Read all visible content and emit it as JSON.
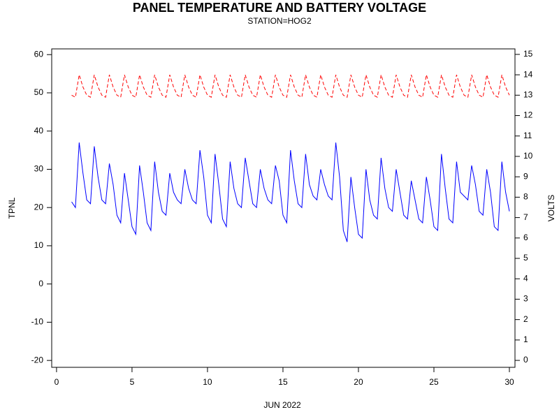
{
  "chart_data": {
    "type": "line",
    "title": "PANEL TEMPERATURE AND BATTERY VOLTAGE",
    "subtitle": "STATION=HOG2",
    "xlabel": "JUN 2022",
    "ylabel": "TPNL",
    "y2label": "VOLTS",
    "x": [
      1,
      1.25,
      1.5,
      1.75,
      2,
      2.25,
      2.5,
      2.75,
      3,
      3.25,
      3.5,
      3.75,
      4,
      4.25,
      4.5,
      4.75,
      5,
      5.25,
      5.5,
      5.75,
      6,
      6.25,
      6.5,
      6.75,
      7,
      7.25,
      7.5,
      7.75,
      8,
      8.25,
      8.5,
      8.75,
      9,
      9.25,
      9.5,
      9.75,
      10,
      10.25,
      10.5,
      10.75,
      11,
      11.25,
      11.5,
      11.75,
      12,
      12.25,
      12.5,
      12.75,
      13,
      13.25,
      13.5,
      13.75,
      14,
      14.25,
      14.5,
      14.75,
      15,
      15.25,
      15.5,
      15.75,
      16,
      16.25,
      16.5,
      16.75,
      17,
      17.25,
      17.5,
      17.75,
      18,
      18.25,
      18.5,
      18.75,
      19,
      19.25,
      19.5,
      19.75,
      20,
      20.25,
      20.5,
      20.75,
      21,
      21.25,
      21.5,
      21.75,
      22,
      22.25,
      22.5,
      22.75,
      23,
      23.25,
      23.5,
      23.75,
      24,
      24.25,
      24.5,
      24.75,
      25,
      25.25,
      25.5,
      25.75,
      26,
      26.25,
      26.5,
      26.75,
      27,
      27.25,
      27.5,
      27.75,
      28,
      28.25,
      28.5,
      28.75,
      29,
      29.25,
      29.5,
      29.75,
      30
    ],
    "series": [
      {
        "color": "#0000ff",
        "dash": false,
        "values": [
          21.5,
          20,
          37,
          29,
          22,
          21,
          36,
          28,
          22,
          21,
          31.5,
          26,
          18,
          16,
          29,
          22,
          15,
          13,
          31,
          24,
          16,
          14,
          32,
          24,
          19,
          18,
          29,
          24,
          22,
          21,
          30,
          25,
          22,
          21,
          35,
          28,
          18,
          16,
          34,
          26,
          17,
          15,
          32,
          25,
          21,
          20,
          33,
          27,
          21,
          20,
          30,
          25,
          22,
          21,
          31,
          27,
          18,
          16,
          35,
          27,
          21,
          20,
          34,
          26,
          23,
          22,
          30,
          26,
          23,
          22,
          37,
          28,
          14,
          11,
          28,
          20,
          13,
          12,
          30,
          22,
          18,
          17,
          33,
          25,
          20,
          19,
          30,
          24,
          18,
          17,
          27,
          22,
          17,
          16,
          28,
          22,
          15,
          14,
          34,
          25,
          17,
          16,
          32,
          24,
          23,
          22,
          31,
          26,
          19,
          18,
          30,
          24,
          15,
          14,
          32,
          24,
          19
        ]
      },
      {
        "color": "#ff0000",
        "dash": true,
        "axis": "y2",
        "values": [
          13,
          12.9,
          14,
          13.4,
          13,
          12.9,
          14,
          13.4,
          13,
          12.9,
          14,
          13.4,
          13,
          12.9,
          14,
          13.4,
          13,
          12.9,
          14,
          13.4,
          13,
          12.9,
          14,
          13.4,
          13,
          12.9,
          14,
          13.4,
          13,
          12.9,
          14,
          13.4,
          13,
          12.9,
          14,
          13.4,
          13,
          12.9,
          14,
          13.4,
          13,
          12.9,
          14,
          13.4,
          13,
          12.9,
          14,
          13.4,
          13,
          12.9,
          14,
          13.4,
          13,
          12.9,
          14,
          13.4,
          13,
          12.9,
          14,
          13.4,
          13,
          12.9,
          14,
          13.4,
          13,
          12.9,
          14,
          13.4,
          13,
          12.9,
          14,
          13.4,
          13,
          12.9,
          14,
          13.4,
          13,
          12.9,
          14,
          13.4,
          13,
          12.9,
          14,
          13.4,
          13,
          12.9,
          14,
          13.4,
          13,
          12.9,
          14,
          13.4,
          13,
          12.9,
          14,
          13.4,
          13,
          12.9,
          14,
          13.4,
          13,
          12.9,
          14,
          13.4,
          13,
          12.9,
          14,
          13.4,
          13,
          12.9,
          14,
          13.4,
          13,
          12.9,
          14,
          13.4,
          13
        ]
      }
    ],
    "xlim": [
      -0.32,
      30.37
    ],
    "xticks": [
      0,
      5,
      10,
      15,
      20,
      25,
      30
    ],
    "ylim": [
      -21.8,
      61.5
    ],
    "yticks": [
      -20,
      -10,
      0,
      10,
      20,
      30,
      40,
      50,
      60
    ],
    "y2lim": [
      -0.34,
      15.27
    ],
    "y2ticks": [
      0,
      1,
      2,
      3,
      4,
      5,
      6,
      7,
      8,
      9,
      10,
      11,
      12,
      13,
      14,
      15
    ]
  }
}
